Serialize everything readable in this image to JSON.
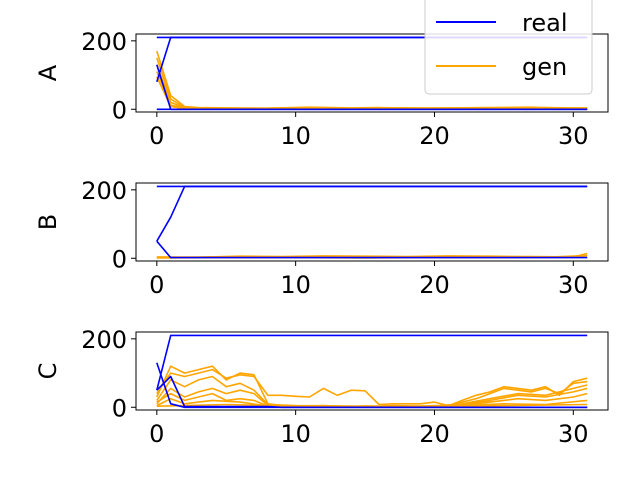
{
  "legend": {
    "placement": "top-right",
    "entries": [
      {
        "label": "real",
        "color": "#0000ff"
      },
      {
        "label": "gen",
        "color": "#ffa500"
      }
    ]
  },
  "chart_data": [
    {
      "type": "line",
      "ylabel": "A",
      "xlim": [
        -1.5,
        32.5
      ],
      "ylim": [
        -8,
        220
      ],
      "xticks": [
        0,
        10,
        20,
        30
      ],
      "yticks": [
        0,
        200
      ],
      "series": [
        {
          "name": "real",
          "color": "#0000ff",
          "x": [
            0,
            1,
            2,
            31
          ],
          "y": [
            80,
            210,
            210,
            210
          ]
        },
        {
          "name": "real",
          "color": "#0000ff",
          "x": [
            0,
            1,
            2,
            31
          ],
          "y": [
            130,
            0,
            0,
            0
          ]
        },
        {
          "name": "real",
          "color": "#0000ff",
          "x": [
            0,
            1,
            2,
            31
          ],
          "y": [
            210,
            210,
            210,
            210
          ]
        },
        {
          "name": "real",
          "color": "#0000ff",
          "x": [
            0,
            31
          ],
          "y": [
            0,
            0
          ]
        },
        {
          "name": "gen",
          "color": "#ffa500",
          "x": [
            0,
            1,
            2,
            3,
            5,
            8,
            11,
            14,
            16,
            19,
            21,
            24,
            27,
            29,
            31
          ],
          "y": [
            170,
            40,
            8,
            5,
            4,
            3,
            6,
            4,
            5,
            3,
            4,
            5,
            6,
            3,
            4
          ]
        },
        {
          "name": "gen",
          "color": "#ffa500",
          "x": [
            0,
            1,
            2,
            3,
            6,
            9,
            12,
            15,
            18,
            22,
            26,
            28,
            31
          ],
          "y": [
            150,
            30,
            5,
            3,
            2,
            4,
            3,
            2,
            4,
            3,
            2,
            5,
            3
          ]
        },
        {
          "name": "gen",
          "color": "#ffa500",
          "x": [
            0,
            1,
            2,
            3,
            5,
            10,
            15,
            20,
            25,
            31
          ],
          "y": [
            130,
            20,
            4,
            2,
            3,
            2,
            3,
            2,
            3,
            2
          ]
        },
        {
          "name": "gen",
          "color": "#ffa500",
          "x": [
            0,
            1,
            2,
            4,
            8,
            13,
            18,
            23,
            27,
            31
          ],
          "y": [
            110,
            12,
            3,
            2,
            1,
            2,
            1,
            2,
            3,
            1
          ]
        },
        {
          "name": "gen",
          "color": "#ffa500",
          "x": [
            0,
            1,
            2,
            31
          ],
          "y": [
            95,
            8,
            2,
            1
          ]
        }
      ]
    },
    {
      "type": "line",
      "ylabel": "B",
      "xlim": [
        -1.5,
        32.5
      ],
      "ylim": [
        -8,
        220
      ],
      "xticks": [
        0,
        10,
        20,
        30
      ],
      "yticks": [
        0,
        200
      ],
      "series": [
        {
          "name": "real",
          "color": "#0000ff",
          "x": [
            0,
            1,
            2,
            31
          ],
          "y": [
            50,
            120,
            210,
            210
          ]
        },
        {
          "name": "real",
          "color": "#0000ff",
          "x": [
            0,
            31
          ],
          "y": [
            210,
            210
          ]
        },
        {
          "name": "real",
          "color": "#0000ff",
          "x": [
            0,
            1,
            31
          ],
          "y": [
            50,
            2,
            2
          ]
        },
        {
          "name": "gen",
          "color": "#ffa500",
          "x": [
            0,
            3,
            6,
            9,
            12,
            15,
            18,
            21,
            24,
            27,
            30,
            31
          ],
          "y": [
            4,
            3,
            6,
            5,
            7,
            6,
            5,
            7,
            6,
            5,
            4,
            14
          ]
        },
        {
          "name": "gen",
          "color": "#ffa500",
          "x": [
            0,
            4,
            8,
            12,
            16,
            20,
            24,
            28,
            31
          ],
          "y": [
            2,
            4,
            3,
            5,
            3,
            4,
            5,
            3,
            8
          ]
        },
        {
          "name": "gen",
          "color": "#ffa500",
          "x": [
            0,
            5,
            10,
            15,
            20,
            25,
            31
          ],
          "y": [
            1,
            2,
            2,
            1,
            2,
            2,
            3
          ]
        }
      ]
    },
    {
      "type": "line",
      "ylabel": "C",
      "xlim": [
        -1.5,
        32.5
      ],
      "ylim": [
        -8,
        220
      ],
      "xticks": [
        0,
        10,
        20,
        30
      ],
      "yticks": [
        0,
        200
      ],
      "series": [
        {
          "name": "real",
          "color": "#0000ff",
          "x": [
            0,
            1,
            2,
            31
          ],
          "y": [
            50,
            210,
            210,
            210
          ]
        },
        {
          "name": "real",
          "color": "#0000ff",
          "x": [
            0,
            1,
            2,
            31
          ],
          "y": [
            130,
            10,
            0,
            0
          ]
        },
        {
          "name": "real",
          "color": "#0000ff",
          "x": [
            0,
            1,
            2,
            8,
            9,
            31
          ],
          "y": [
            50,
            90,
            2,
            2,
            0,
            0
          ]
        },
        {
          "name": "gen",
          "color": "#ffa500",
          "x": [
            0,
            1,
            2,
            3,
            4,
            5,
            6,
            7,
            8,
            9,
            10,
            11,
            12,
            13,
            14,
            15,
            16,
            17,
            18,
            19,
            20,
            21,
            22,
            23,
            24,
            25,
            26,
            27,
            28,
            29,
            30,
            31
          ],
          "y": [
            30,
            120,
            100,
            110,
            120,
            80,
            100,
            95,
            10,
            5,
            3,
            4,
            5,
            3,
            2,
            4,
            3,
            5,
            4,
            3,
            5,
            4,
            20,
            35,
            45,
            60,
            55,
            50,
            60,
            35,
            75,
            85
          ]
        },
        {
          "name": "gen",
          "color": "#ffa500",
          "x": [
            0,
            1,
            2,
            3,
            4,
            5,
            6,
            7,
            8,
            9,
            10,
            11,
            12,
            13,
            14,
            15,
            16,
            17,
            18,
            19,
            20,
            21,
            22,
            23,
            24,
            25,
            26,
            27,
            28,
            29,
            30,
            31
          ],
          "y": [
            40,
            100,
            90,
            100,
            110,
            85,
            95,
            90,
            35,
            35,
            32,
            30,
            55,
            35,
            50,
            48,
            8,
            10,
            10,
            10,
            15,
            5,
            15,
            25,
            40,
            55,
            50,
            45,
            55,
            40,
            70,
            75
          ]
        },
        {
          "name": "gen",
          "color": "#ffa500",
          "x": [
            0,
            1,
            2,
            3,
            4,
            5,
            6,
            7,
            8,
            10,
            15,
            20,
            22,
            24,
            26,
            28,
            30,
            31
          ],
          "y": [
            20,
            80,
            60,
            80,
            90,
            60,
            70,
            50,
            8,
            5,
            3,
            4,
            10,
            25,
            40,
            35,
            55,
            65
          ]
        },
        {
          "name": "gen",
          "color": "#ffa500",
          "x": [
            0,
            1,
            2,
            3,
            4,
            5,
            6,
            7,
            8,
            10,
            15,
            20,
            22,
            24,
            26,
            28,
            30,
            31
          ],
          "y": [
            10,
            55,
            30,
            45,
            55,
            40,
            50,
            40,
            5,
            3,
            2,
            3,
            8,
            20,
            35,
            30,
            45,
            55
          ]
        },
        {
          "name": "gen",
          "color": "#ffa500",
          "x": [
            0,
            1,
            2,
            3,
            4,
            5,
            6,
            7,
            8,
            10,
            15,
            20,
            22,
            24,
            26,
            28,
            30,
            31
          ],
          "y": [
            15,
            40,
            20,
            30,
            40,
            20,
            25,
            20,
            3,
            2,
            1,
            2,
            5,
            15,
            25,
            20,
            30,
            40
          ]
        },
        {
          "name": "gen",
          "color": "#ffa500",
          "x": [
            0,
            1,
            2,
            3,
            4,
            6,
            8,
            10,
            15,
            20,
            25,
            28,
            31
          ],
          "y": [
            5,
            25,
            10,
            15,
            20,
            15,
            4,
            2,
            1,
            2,
            10,
            8,
            20
          ]
        },
        {
          "name": "gen",
          "color": "#ffa500",
          "x": [
            0,
            2,
            5,
            10,
            15,
            20,
            25,
            31
          ],
          "y": [
            3,
            5,
            8,
            3,
            2,
            2,
            5,
            8
          ]
        }
      ]
    }
  ]
}
